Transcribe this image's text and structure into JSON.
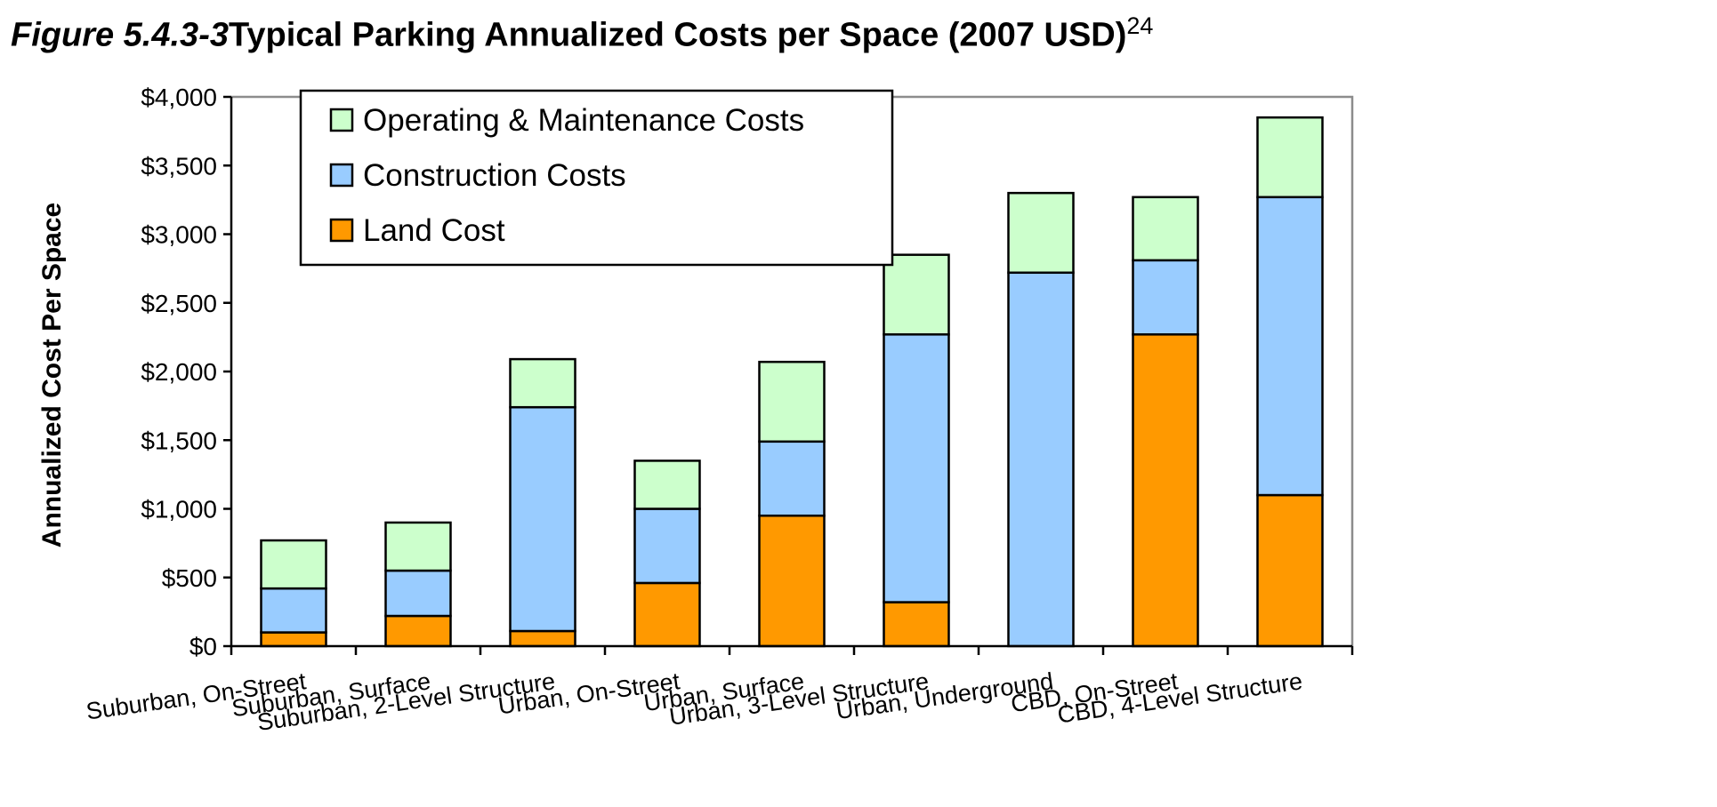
{
  "figure": {
    "number": "Figure 5.4.3-3",
    "title": "Typical Parking Annualized Costs per Space (2007 USD)",
    "footnote": "24"
  },
  "chart_data": {
    "type": "bar",
    "stacked": true,
    "title": "Typical Parking Annualized Costs per Space (2007 USD)",
    "xlabel": "",
    "ylabel": "Annualized Cost Per Space",
    "ylim": [
      0,
      4000
    ],
    "yticks": [
      0,
      500,
      1000,
      1500,
      2000,
      2500,
      3000,
      3500,
      4000
    ],
    "ytick_labels": [
      "$0",
      "$500",
      "$1,000",
      "$1,500",
      "$2,000",
      "$2,500",
      "$3,000",
      "$3,500",
      "$4,000"
    ],
    "categories": [
      "Suburban, On-Street",
      "Suburban, Surface",
      "Suburban, 2-Level Structure",
      "Urban, On-Street",
      "Urban, Surface",
      "Urban, 3-Level Structure",
      "Urban, Underground",
      "CBD, On-Street",
      "CBD, 4-Level Structure"
    ],
    "series": [
      {
        "name": "Land Cost",
        "color": "#ff9900",
        "values": [
          100,
          220,
          110,
          460,
          950,
          320,
          0,
          2270,
          1100
        ]
      },
      {
        "name": "Construction Costs",
        "color": "#99ccff",
        "values": [
          320,
          330,
          1630,
          540,
          540,
          1950,
          2720,
          540,
          2170
        ]
      },
      {
        "name": "Operating & Maintenance Costs",
        "color": "#ccffcc",
        "values": [
          350,
          350,
          350,
          350,
          580,
          580,
          580,
          460,
          580
        ]
      }
    ],
    "legend_order": [
      "Operating & Maintenance Costs",
      "Construction Costs",
      "Land Cost"
    ],
    "legend_position": "top-left",
    "grid": false
  }
}
